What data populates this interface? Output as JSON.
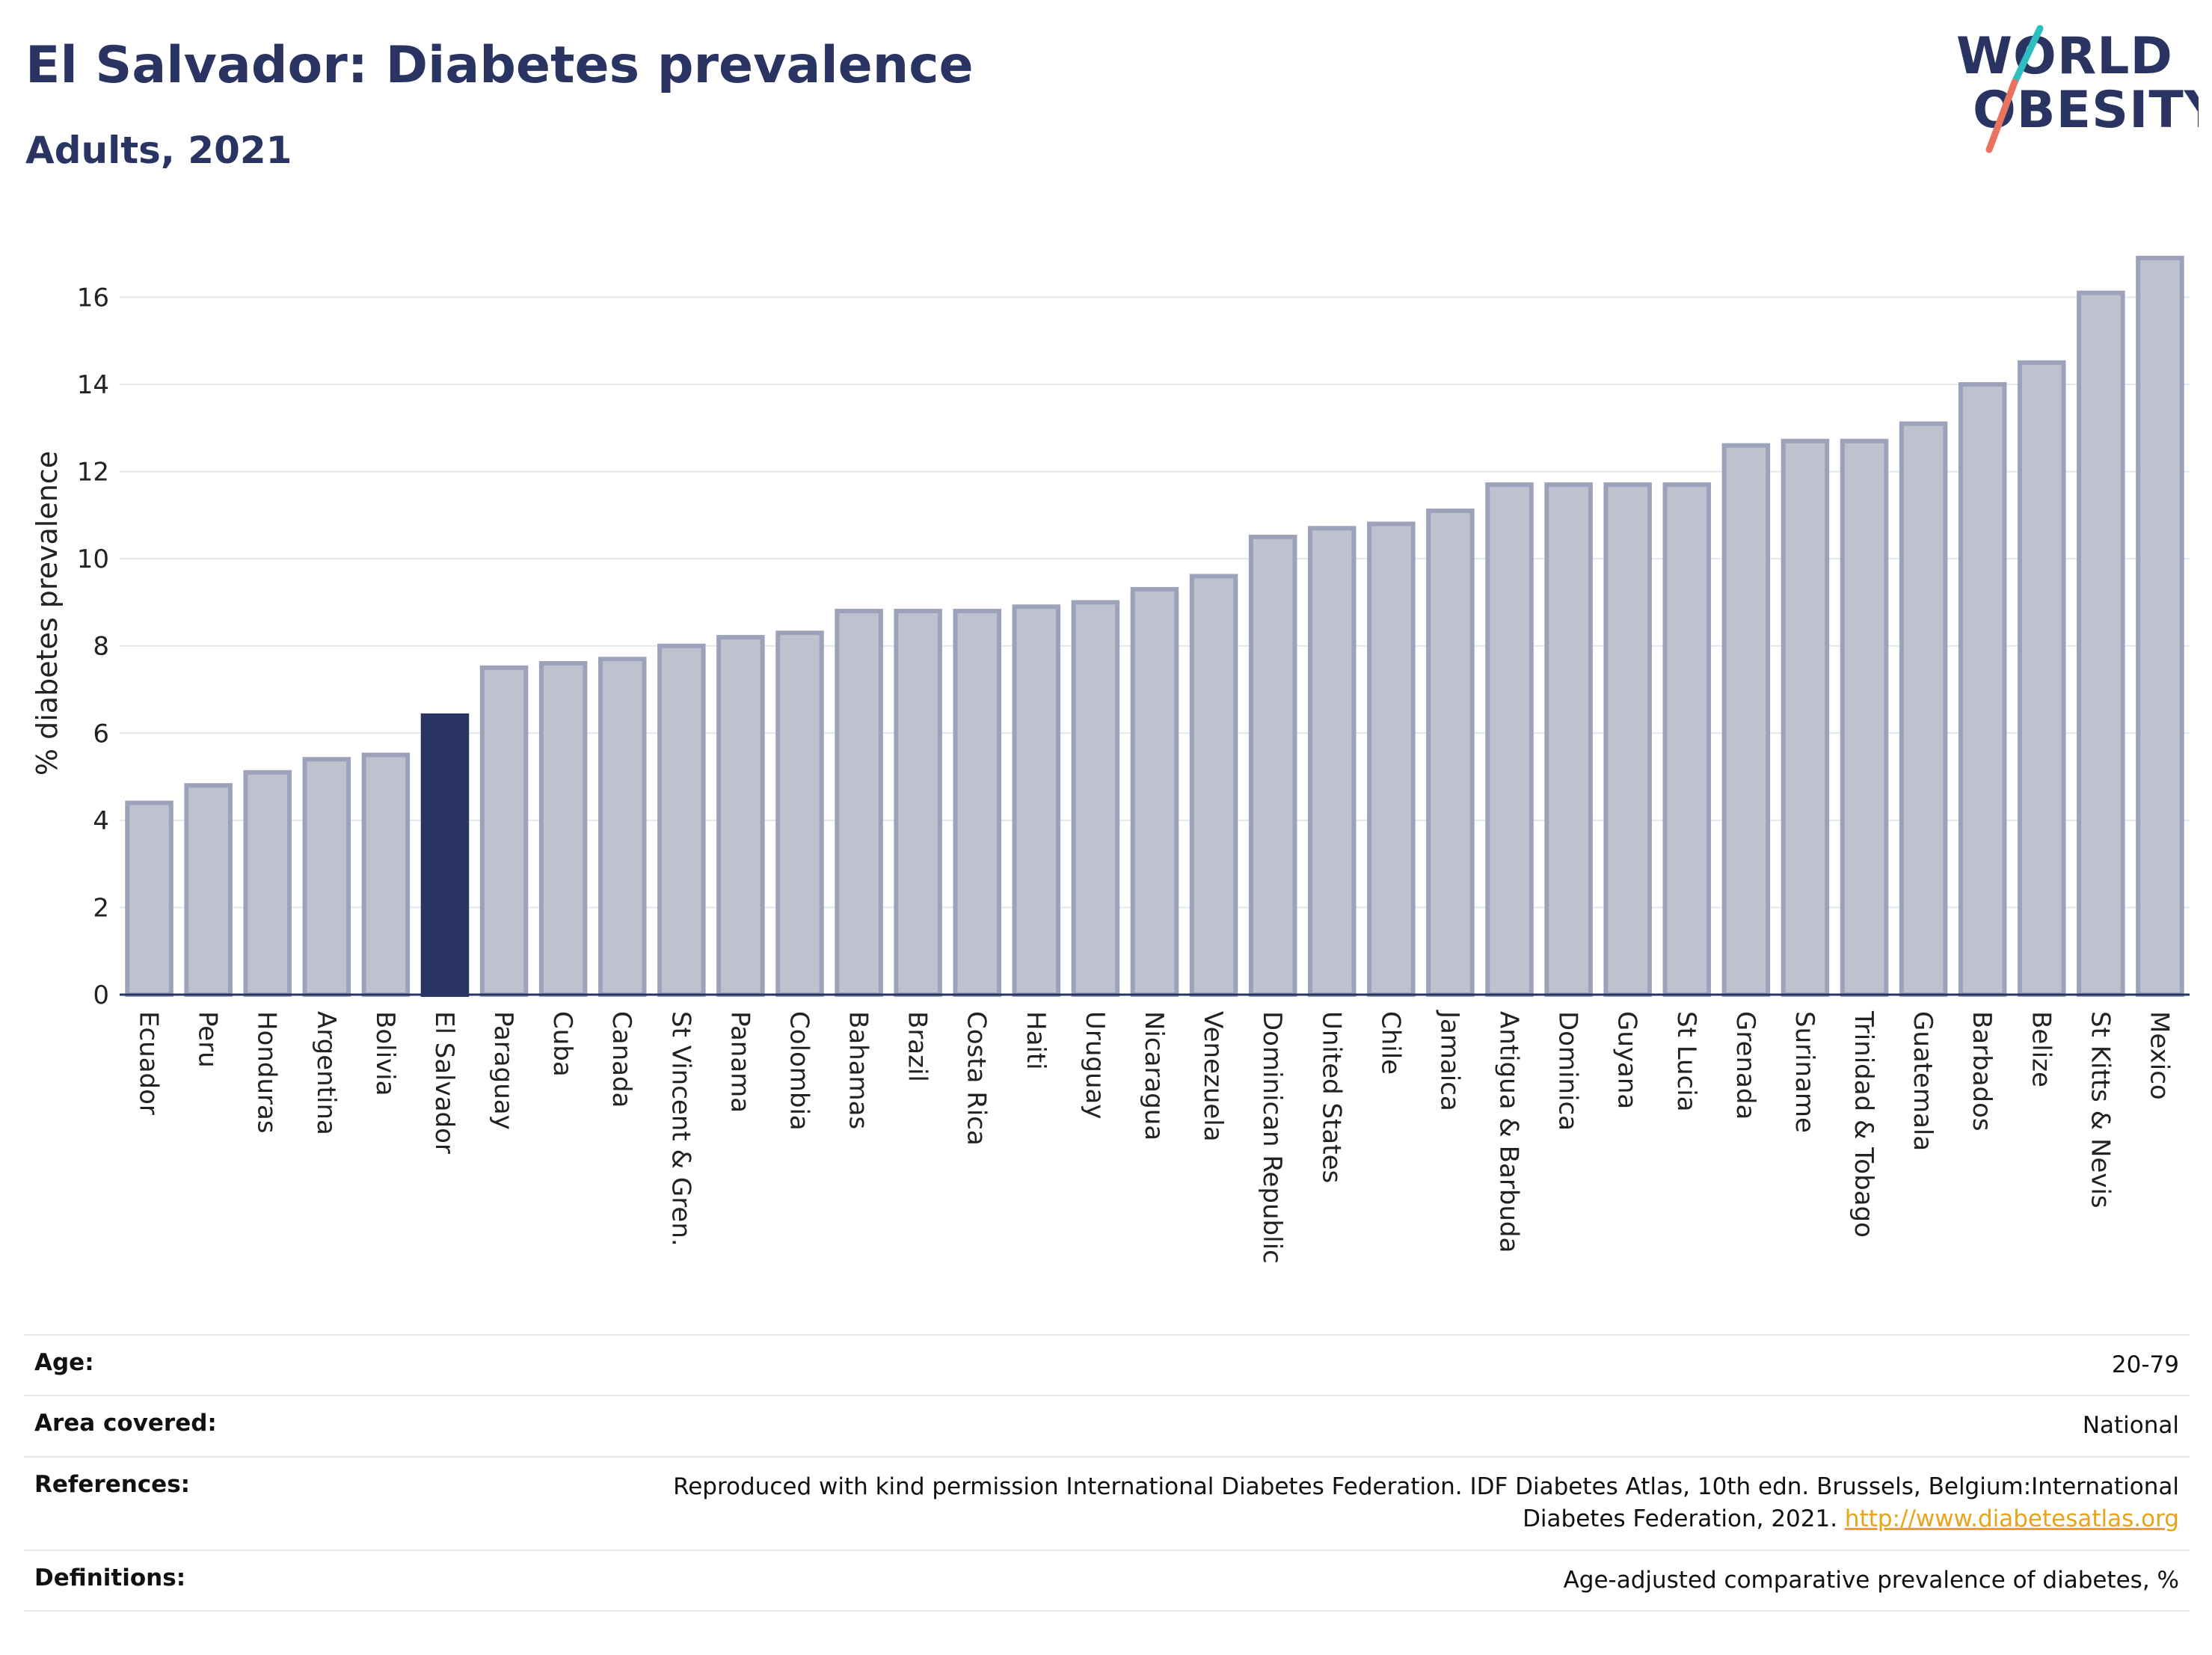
{
  "header": {
    "title": "El Salvador: Diabetes prevalence",
    "subtitle": "Adults, 2021"
  },
  "logo": {
    "line1": "WORLD",
    "line2": "OBESITY",
    "accent_colors": [
      "#2dbfbf",
      "#e8735f"
    ]
  },
  "chart_data": {
    "type": "bar",
    "ylabel": "% diabetes prevalence",
    "xlabel": "",
    "ylim": [
      0,
      17.5
    ],
    "yticks": [
      0,
      2,
      4,
      6,
      8,
      10,
      12,
      14,
      16
    ],
    "grid": true,
    "highlight": "El Salvador",
    "highlight_color": "#2a3462",
    "bar_color": "#bfc2ce",
    "bar_border_color": "#9da2bb",
    "categories": [
      "Ecuador",
      "Peru",
      "Honduras",
      "Argentina",
      "Bolivia",
      "El Salvador",
      "Paraguay",
      "Cuba",
      "Canada",
      "St Vincent & Gren.",
      "Panama",
      "Colombia",
      "Bahamas",
      "Brazil",
      "Costa Rica",
      "Haiti",
      "Uruguay",
      "Nicaragua",
      "Venezuela",
      "Dominican Republic",
      "United States",
      "Chile",
      "Jamaica",
      "Antigua & Barbuda",
      "Dominica",
      "Guyana",
      "St Lucia",
      "Grenada",
      "Suriname",
      "Trinidad & Tobago",
      "Guatemala",
      "Barbados",
      "Belize",
      "St Kitts & Nevis",
      "Mexico"
    ],
    "values": [
      4.4,
      4.8,
      5.1,
      5.4,
      5.5,
      6.4,
      7.5,
      7.6,
      7.7,
      8.0,
      8.2,
      8.3,
      8.8,
      8.8,
      8.8,
      8.9,
      9.0,
      9.3,
      9.6,
      10.5,
      10.7,
      10.8,
      11.1,
      11.7,
      11.7,
      11.7,
      11.7,
      12.6,
      12.7,
      12.7,
      13.1,
      14.0,
      14.5,
      16.1,
      16.9
    ]
  },
  "info": {
    "age_label": "Age:",
    "age_value": "20-79",
    "area_label": "Area covered:",
    "area_value": "National",
    "references_label": "References:",
    "references_text": "Reproduced with kind permission International Diabetes Federation.  IDF Diabetes Atlas, 10th edn. Brussels, Belgium:International Diabetes Federation, 2021.",
    "references_link": "http://www.diabetesatlas.org",
    "definitions_label": "Definitions:",
    "definitions_value": "Age-adjusted comparative prevalence of diabetes, %"
  }
}
